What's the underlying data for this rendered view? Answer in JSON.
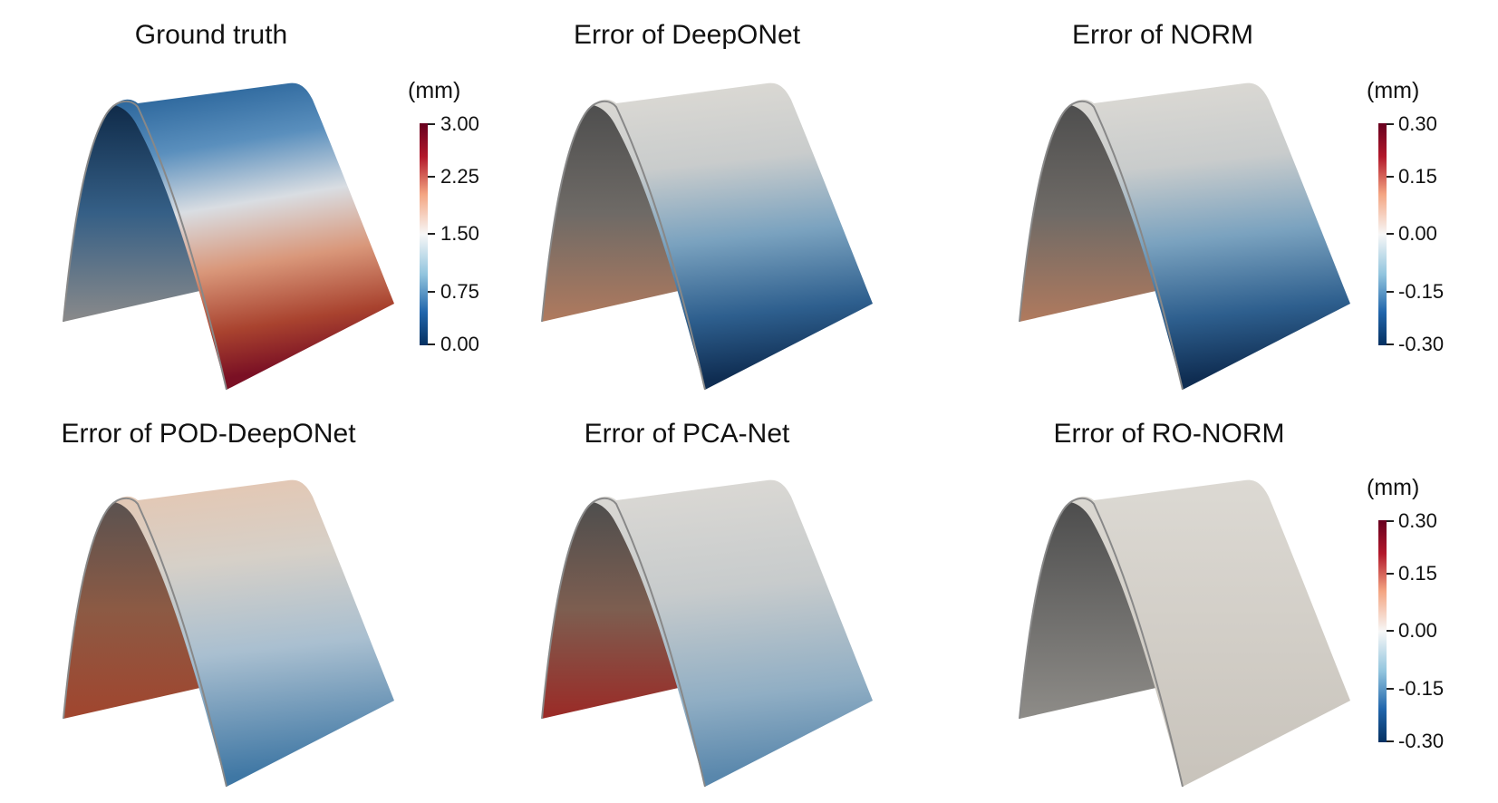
{
  "panels": [
    {
      "title": "Ground truth"
    },
    {
      "title": "Error of DeepONet"
    },
    {
      "title": "Error of NORM"
    },
    {
      "title": "Error of POD-DeepONet"
    },
    {
      "title": "Error of PCA-Net"
    },
    {
      "title": "Error of RO-NORM"
    }
  ],
  "colorbars": [
    {
      "unit": "(mm)",
      "ticks": [
        "3.00",
        "2.25",
        "1.50",
        "0.75",
        "0.00"
      ]
    },
    {
      "unit": "(mm)",
      "ticks": [
        "0.30",
        "0.15",
        "0.00",
        "-0.15",
        "-0.30"
      ]
    },
    {
      "unit": "(mm)",
      "ticks": [
        "0.30",
        "0.15",
        "0.00",
        "-0.15",
        "-0.30"
      ]
    }
  ],
  "colormap": {
    "high": "#67001f",
    "mid": "#f2f0ec",
    "low": "#053061"
  }
}
